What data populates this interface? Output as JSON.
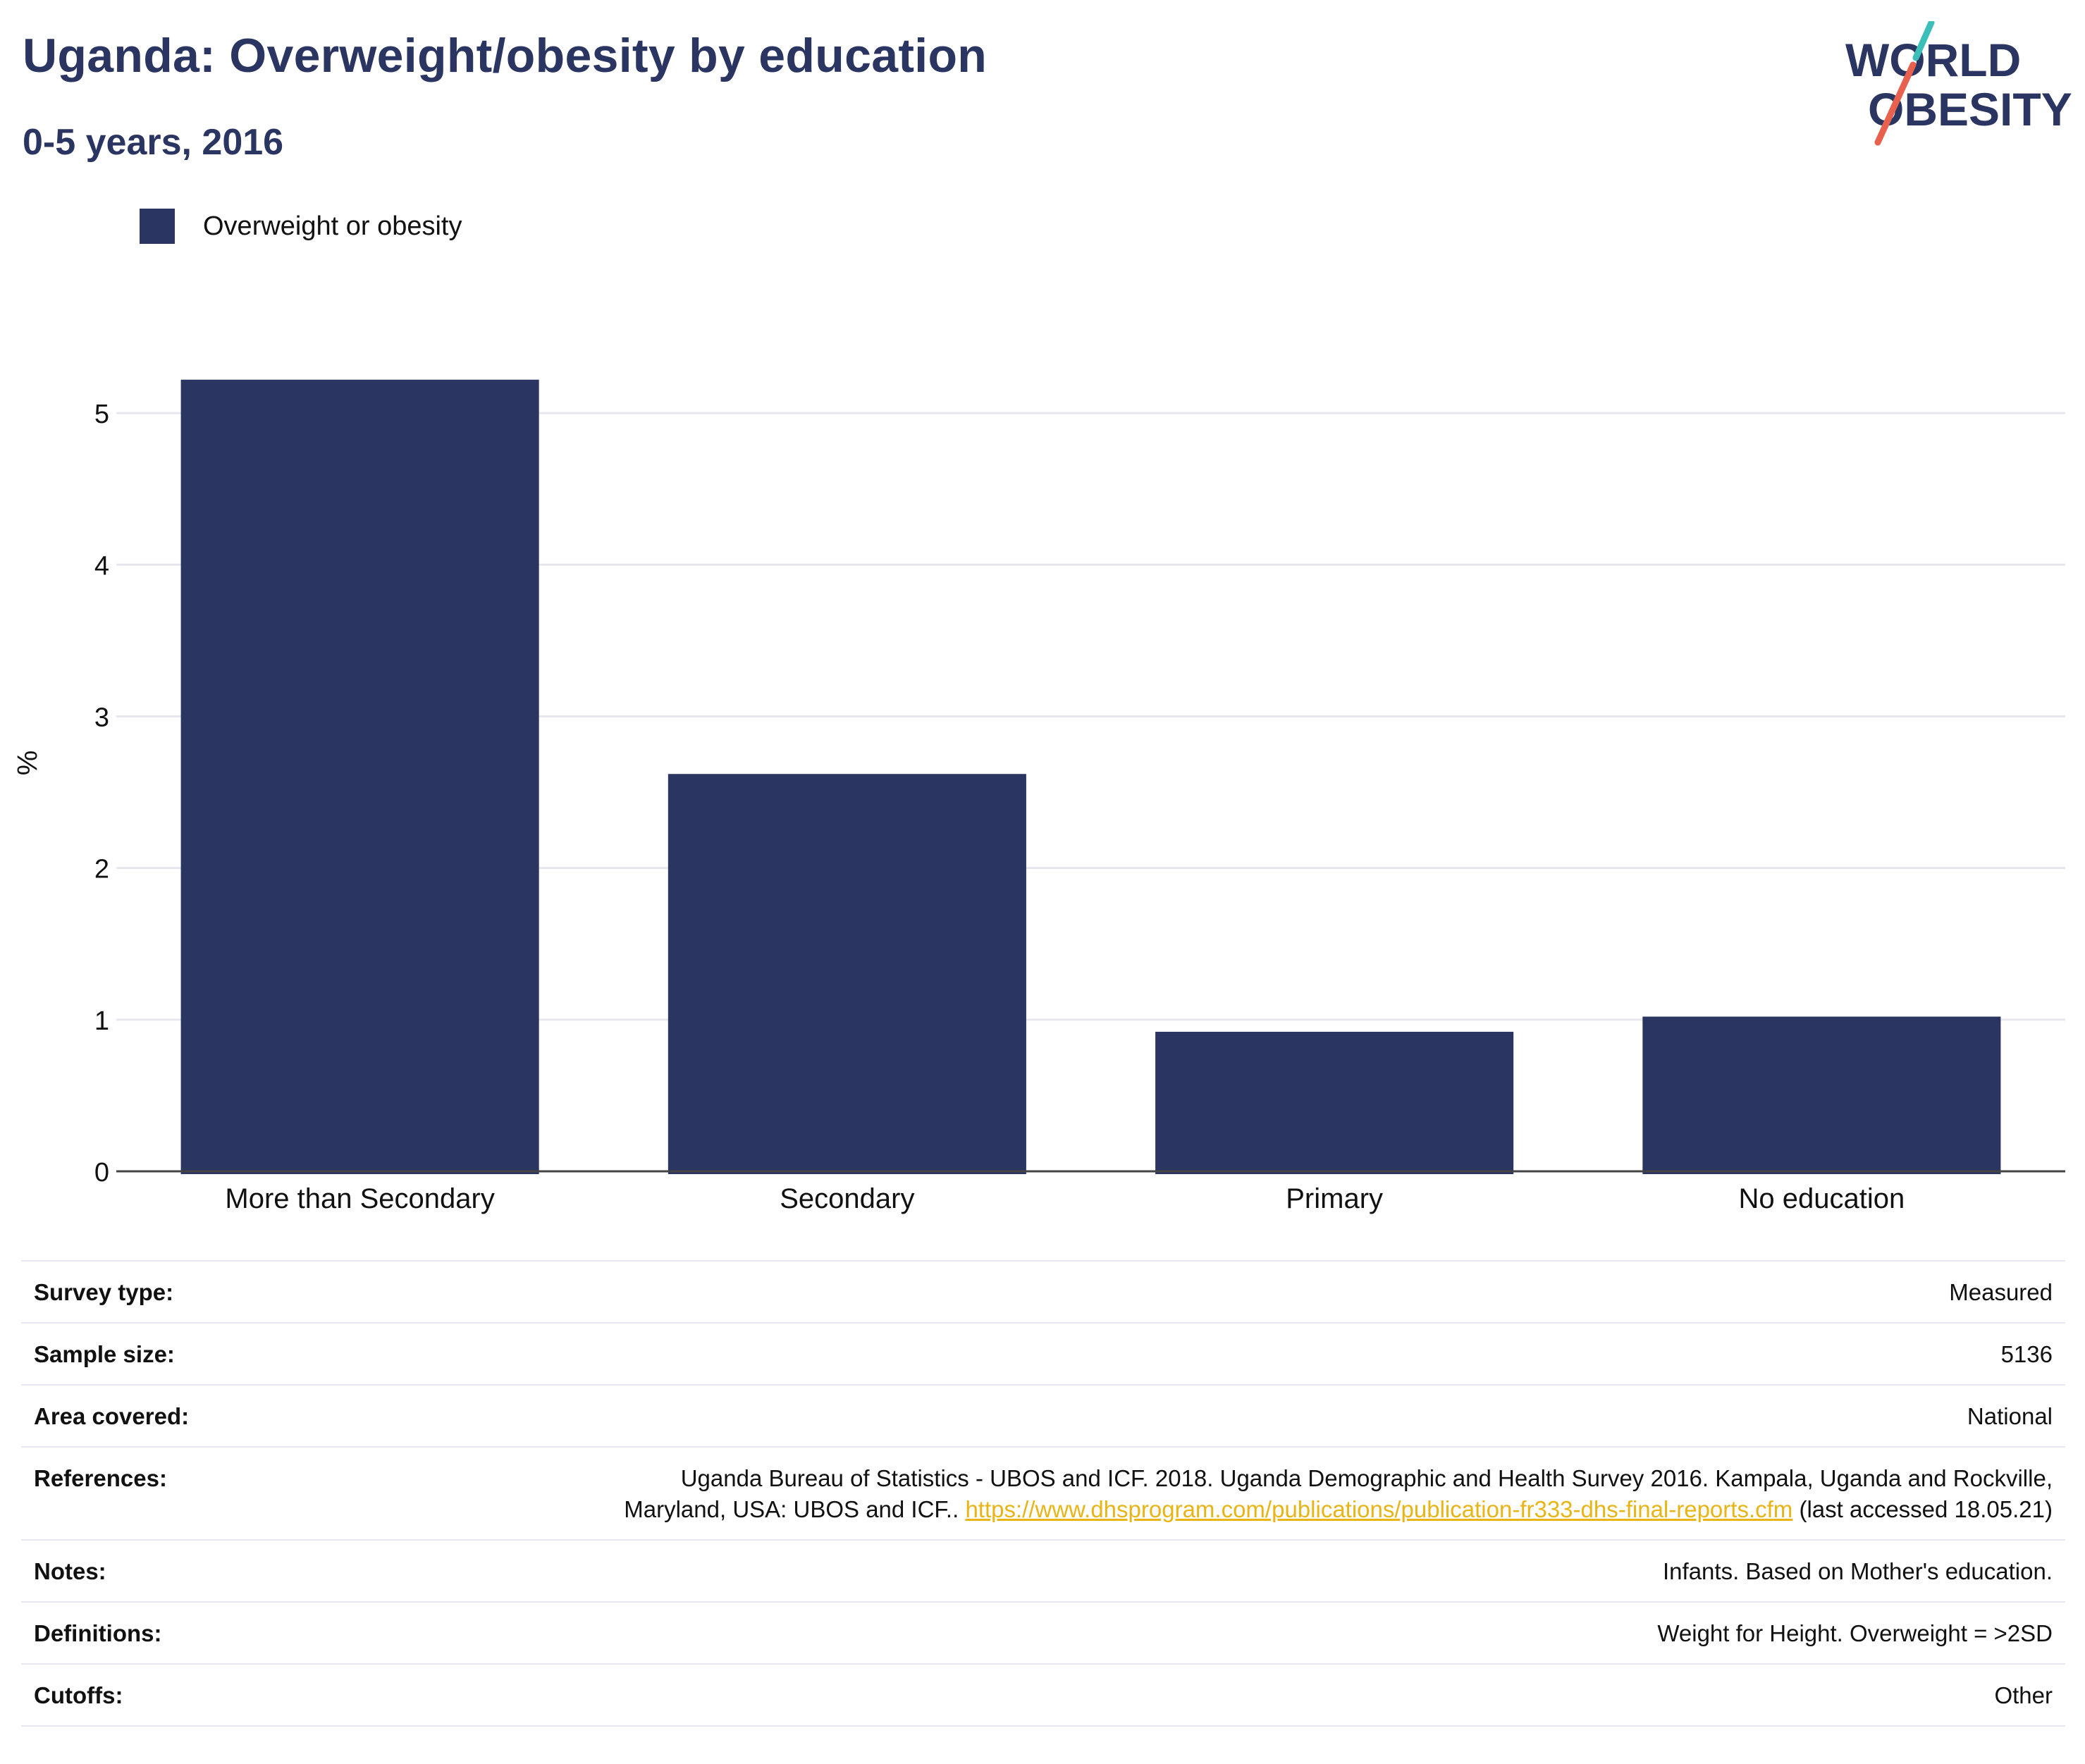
{
  "header": {
    "title": "Uganda: Overweight/obesity by education",
    "subtitle": "0-5 years, 2016"
  },
  "logo": {
    "line1": "WORLD",
    "line2": "OBESITY",
    "colors": {
      "text": "#2b3561",
      "slash_top": "#3cbfb9",
      "slash_bottom": "#e8614f"
    }
  },
  "chart_data": {
    "type": "bar",
    "categories": [
      "More than Secondary",
      "Secondary",
      "Primary",
      "No education"
    ],
    "series": [
      {
        "name": "Overweight or obesity",
        "values": [
          5.22,
          2.62,
          0.92,
          1.02
        ],
        "color": "#2b3561"
      }
    ],
    "ylabel": "%",
    "xlabel": "",
    "ylim": [
      0,
      5.4
    ],
    "yticks": [
      0,
      1,
      2,
      3,
      4,
      5
    ],
    "grid": true,
    "legend_position": "top-left"
  },
  "meta": {
    "rows": [
      {
        "key": "Survey type:",
        "value": "Measured"
      },
      {
        "key": "Sample size:",
        "value": "5136"
      },
      {
        "key": "Area covered:",
        "value": "National"
      },
      {
        "key": "References:",
        "value": "Uganda Bureau of Statistics - UBOS and ICF. 2018. Uganda Demographic and Health Survey 2016. Kampala, Uganda and Rockville, Maryland, USA: UBOS and ICF.. ",
        "link": "https://www.dhsprogram.com/publications/publication-fr333-dhs-final-reports.cfm",
        "suffix": " (last accessed 18.05.21)"
      },
      {
        "key": "Notes:",
        "value": "Infants. Based on Mother's education."
      },
      {
        "key": "Definitions:",
        "value": "Weight for Height. Overweight = >2SD"
      },
      {
        "key": "Cutoffs:",
        "value": "Other"
      }
    ]
  }
}
